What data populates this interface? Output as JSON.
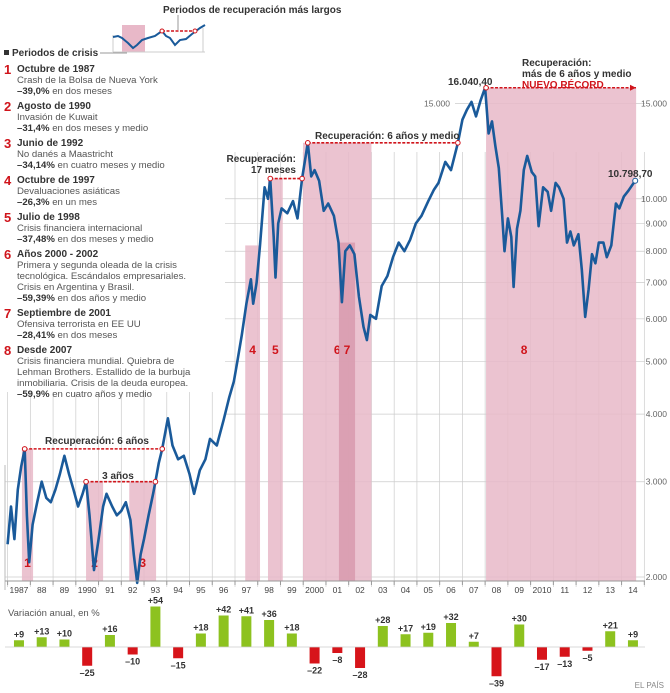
{
  "inset": {
    "recovery_label": "Periodos de recuperación más largos",
    "crisis_label": "Periodos de crisis"
  },
  "crises": [
    {
      "n": "1",
      "title": "Octubre de 1987",
      "desc": [
        "Crash de la Bolsa de Nueva York"
      ],
      "pct": "–39,0%",
      "duration": " en dos meses"
    },
    {
      "n": "2",
      "title": "Agosto de 1990",
      "desc": [
        "Invasión de Kuwait"
      ],
      "pct": "–31,4%",
      "duration": " en dos meses y medio"
    },
    {
      "n": "3",
      "title": "Junio de 1992",
      "desc": [
        "No danés a Maastricht"
      ],
      "pct": "–34,14%",
      "duration": " en cuatro meses y medio"
    },
    {
      "n": "4",
      "title": "Octubre de 1997",
      "desc": [
        "Devaluaciones asiáticas"
      ],
      "pct": "–26,3%",
      "duration": " en un mes"
    },
    {
      "n": "5",
      "title": "Julio de 1998",
      "desc": [
        "Crisis financiera  internacional"
      ],
      "pct": "–37,48%",
      "duration": " en dos meses y medio"
    },
    {
      "n": "6",
      "title": "Años 2000 - 2002",
      "desc": [
        "Primera y segunda oleada de la crisis",
        "tecnológica. Escándalos empresariales.",
        "Crisis en Argentina y Brasil."
      ],
      "pct": "–59,39%",
      "duration": " en dos años y medio"
    },
    {
      "n": "7",
      "title": "Septiembre de 2001",
      "desc": [
        "Ofensiva terrorista en EE UU"
      ],
      "pct": "–28,41%",
      "duration": " en dos meses"
    },
    {
      "n": "8",
      "title": "Desde 2007",
      "desc": [
        "Crisis financiera mundial. Quiebra de",
        "Lehman Brothers. Estallido de la burbuja",
        "inmobiliaria. Crisis de la deuda europea."
      ],
      "pct": "–59,9%",
      "duration": " en cuatro años y medio"
    }
  ],
  "chart_data": [
    {
      "type": "line",
      "yscale": "log",
      "ylim": [
        2000,
        16500
      ],
      "xlim": [
        1987,
        2015
      ],
      "grid": true,
      "x_tick_labels": [
        "1987",
        "88",
        "89",
        "1990",
        "91",
        "92",
        "93",
        "94",
        "95",
        "96",
        "97",
        "98",
        "99",
        "2000",
        "01",
        "02",
        "03",
        "04",
        "05",
        "06",
        "07",
        "08",
        "09",
        "2010",
        "11",
        "12",
        "13",
        "14"
      ],
      "y_ticks": [
        {
          "value": 2000,
          "label": "2.000"
        },
        {
          "value": 3000,
          "label": "3.000"
        },
        {
          "value": 4000,
          "label": "4.000"
        },
        {
          "value": 5000,
          "label": "5.000"
        },
        {
          "value": 6000,
          "label": "6.000"
        },
        {
          "value": 7000,
          "label": "7.000"
        },
        {
          "value": 8000,
          "label": "8.000"
        },
        {
          "value": 9000,
          "label": "9.000"
        },
        {
          "value": 10000,
          "label": "10.000"
        },
        {
          "value": 15000,
          "label": "15.000"
        }
      ],
      "series": [
        {
          "color": "#1a5a9a",
          "points": [
            [
              1987.0,
              2300
            ],
            [
              1987.15,
              2700
            ],
            [
              1987.3,
              2350
            ],
            [
              1987.45,
              2900
            ],
            [
              1987.6,
              3200
            ],
            [
              1987.75,
              3450
            ],
            [
              1987.85,
              2600
            ],
            [
              1987.95,
              2130
            ],
            [
              1988.1,
              2500
            ],
            [
              1988.3,
              2750
            ],
            [
              1988.5,
              3000
            ],
            [
              1988.7,
              2800
            ],
            [
              1988.9,
              2750
            ],
            [
              1989.1,
              2900
            ],
            [
              1989.3,
              3100
            ],
            [
              1989.5,
              3350
            ],
            [
              1989.7,
              3100
            ],
            [
              1989.9,
              2900
            ],
            [
              1990.1,
              2700
            ],
            [
              1990.3,
              2850
            ],
            [
              1990.45,
              3000
            ],
            [
              1990.6,
              2600
            ],
            [
              1990.8,
              2060
            ],
            [
              1991.0,
              2350
            ],
            [
              1991.2,
              2700
            ],
            [
              1991.35,
              2850
            ],
            [
              1991.6,
              2700
            ],
            [
              1991.8,
              2600
            ],
            [
              1992.0,
              2650
            ],
            [
              1992.2,
              2750
            ],
            [
              1992.4,
              2550
            ],
            [
              1992.55,
              2200
            ],
            [
              1992.7,
              1950
            ],
            [
              1992.85,
              2200
            ],
            [
              1993.0,
              2350
            ],
            [
              1993.2,
              2600
            ],
            [
              1993.4,
              2850
            ],
            [
              1993.5,
              3000
            ],
            [
              1993.65,
              3250
            ],
            [
              1993.8,
              3450
            ],
            [
              1994.05,
              3930
            ],
            [
              1994.25,
              3500
            ],
            [
              1994.5,
              3300
            ],
            [
              1994.75,
              3350
            ],
            [
              1995.0,
              3100
            ],
            [
              1995.2,
              2850
            ],
            [
              1995.45,
              3150
            ],
            [
              1995.7,
              3300
            ],
            [
              1995.9,
              3600
            ],
            [
              1996.2,
              3500
            ],
            [
              1996.5,
              3900
            ],
            [
              1996.75,
              4300
            ],
            [
              1996.95,
              4600
            ],
            [
              1997.1,
              5000
            ],
            [
              1997.3,
              5600
            ],
            [
              1997.5,
              6400
            ],
            [
              1997.7,
              7100
            ],
            [
              1997.8,
              6400
            ],
            [
              1997.95,
              7000
            ],
            [
              1998.1,
              8200
            ],
            [
              1998.3,
              10500
            ],
            [
              1998.45,
              10000
            ],
            [
              1998.55,
              10900
            ],
            [
              1998.7,
              8500
            ],
            [
              1998.78,
              7150
            ],
            [
              1998.9,
              9000
            ],
            [
              1999.05,
              9600
            ],
            [
              1999.3,
              9400
            ],
            [
              1999.55,
              9900
            ],
            [
              1999.75,
              9200
            ],
            [
              1999.95,
              10900
            ],
            [
              2000.2,
              12690
            ],
            [
              2000.35,
              11000
            ],
            [
              2000.5,
              11300
            ],
            [
              2000.7,
              10800
            ],
            [
              2000.9,
              9500
            ],
            [
              2001.1,
              9800
            ],
            [
              2001.35,
              9300
            ],
            [
              2001.55,
              8300
            ],
            [
              2001.7,
              6440
            ],
            [
              2001.85,
              8000
            ],
            [
              2002.05,
              8200
            ],
            [
              2002.25,
              7900
            ],
            [
              2002.45,
              6600
            ],
            [
              2002.65,
              5800
            ],
            [
              2002.8,
              5480
            ],
            [
              2002.95,
              6100
            ],
            [
              2003.2,
              6000
            ],
            [
              2003.45,
              6900
            ],
            [
              2003.7,
              7200
            ],
            [
              2003.95,
              7800
            ],
            [
              2004.2,
              8300
            ],
            [
              2004.45,
              8000
            ],
            [
              2004.7,
              8400
            ],
            [
              2004.95,
              9000
            ],
            [
              2005.2,
              9300
            ],
            [
              2005.5,
              9900
            ],
            [
              2005.75,
              10400
            ],
            [
              2005.95,
              10700
            ],
            [
              2006.25,
              11700
            ],
            [
              2006.5,
              11300
            ],
            [
              2006.8,
              12690
            ],
            [
              2007.0,
              14000
            ],
            [
              2007.2,
              14600
            ],
            [
              2007.4,
              15100
            ],
            [
              2007.6,
              14200
            ],
            [
              2007.8,
              15200
            ],
            [
              2008.0,
              16040.4
            ],
            [
              2008.15,
              13200
            ],
            [
              2008.3,
              13900
            ],
            [
              2008.45,
              12500
            ],
            [
              2008.6,
              11400
            ],
            [
              2008.75,
              9300
            ],
            [
              2008.85,
              8000
            ],
            [
              2009.0,
              9200
            ],
            [
              2009.15,
              8500
            ],
            [
              2009.25,
              6870
            ],
            [
              2009.4,
              8800
            ],
            [
              2009.55,
              9500
            ],
            [
              2009.7,
              11300
            ],
            [
              2009.85,
              12000
            ],
            [
              2010.05,
              11200
            ],
            [
              2010.2,
              11000
            ],
            [
              2010.35,
              8900
            ],
            [
              2010.55,
              10500
            ],
            [
              2010.75,
              10300
            ],
            [
              2010.9,
              9500
            ],
            [
              2011.1,
              10700
            ],
            [
              2011.25,
              10500
            ],
            [
              2011.45,
              10000
            ],
            [
              2011.6,
              8300
            ],
            [
              2011.75,
              8700
            ],
            [
              2011.9,
              8200
            ],
            [
              2012.1,
              8600
            ],
            [
              2012.25,
              7400
            ],
            [
              2012.4,
              6050
            ],
            [
              2012.55,
              6800
            ],
            [
              2012.7,
              7900
            ],
            [
              2012.85,
              7600
            ],
            [
              2013.0,
              8300
            ],
            [
              2013.2,
              8300
            ],
            [
              2013.35,
              7800
            ],
            [
              2013.55,
              8200
            ],
            [
              2013.75,
              9800
            ],
            [
              2013.9,
              9600
            ],
            [
              2014.1,
              10100
            ],
            [
              2014.3,
              10350
            ],
            [
              2014.6,
              10798.7
            ]
          ]
        }
      ],
      "crisis_periods": [
        {
          "label": "1",
          "start": 1987.63,
          "end": 1988.12
        },
        {
          "label": "2",
          "start": 1990.45,
          "end": 1991.2
        },
        {
          "label": "3",
          "start": 1992.35,
          "end": 1993.53
        },
        {
          "label": "4",
          "start": 1997.45,
          "end": 1998.1
        },
        {
          "label": "5",
          "start": 1998.45,
          "end": 1999.1
        },
        {
          "label": "6",
          "start": 1999.99,
          "end": 2003.0
        },
        {
          "label": "7",
          "start": 2001.57,
          "end": 2002.28
        },
        {
          "label": "8",
          "start": 2008.04,
          "end": 2014.64
        }
      ],
      "recoveries": [
        {
          "label": "Recuperación: 6 años",
          "start": 1987.75,
          "end": 1993.8,
          "value": 3450
        },
        {
          "label": "3 años",
          "start": 1990.45,
          "end": 1993.5,
          "value": 3000
        },
        {
          "label_lines": [
            "Recuperación:",
            "17 meses"
          ],
          "start": 1998.55,
          "end": 1999.95,
          "value": 10900
        },
        {
          "label": "Recuperación: 6 años y medio",
          "start": 2000.2,
          "end": 2006.8,
          "value": 12690
        },
        {
          "label_lines": [
            "Recuperación:",
            "más de 6 años y medio"
          ],
          "highlight": "NUEVO RÉCORD",
          "start": 2008.04,
          "end": 2014.64,
          "value": 16040.4,
          "open_ended": true
        }
      ],
      "annotations": {
        "peak": "16.040,40",
        "last": "10.798,70"
      }
    },
    {
      "type": "bar",
      "title": "Variación anual, en %",
      "categories": [
        "1987",
        "1988",
        "1989",
        "1990",
        "1991",
        "1992",
        "1993",
        "1994",
        "1995",
        "1996",
        "1997",
        "1998",
        "1999",
        "2000",
        "2001",
        "2002",
        "2003",
        "2004",
        "2005",
        "2006",
        "2007",
        "2008",
        "2009",
        "2010",
        "2011",
        "2012",
        "2013",
        "2014"
      ],
      "values": [
        9,
        13,
        10,
        -25,
        16,
        -10,
        54,
        -15,
        18,
        42,
        41,
        36,
        18,
        -22,
        -8,
        -28,
        28,
        17,
        19,
        32,
        7,
        -39,
        30,
        -17,
        -13,
        -5,
        21,
        9
      ],
      "value_labels": [
        "+9",
        "+13",
        "+10",
        "–25",
        "+16",
        "–10",
        "+54",
        "–15",
        "+18",
        "+42",
        "+41",
        "+36",
        "+18",
        "–22",
        "–8",
        "–28",
        "+28",
        "+17",
        "+19",
        "+32",
        "+7",
        "–39",
        "+30",
        "–17",
        "–13",
        "–5",
        "+21",
        "+9"
      ],
      "colors": {
        "positive": "#8dc21f",
        "negative": "#d7141a"
      }
    }
  ],
  "colors": {
    "line": "#1a5a9a",
    "crisis_fill": "#e8b8c8",
    "crisis_overlap": "#d89aae",
    "accent_red": "#d0141b"
  },
  "source": "EL PAÍS"
}
